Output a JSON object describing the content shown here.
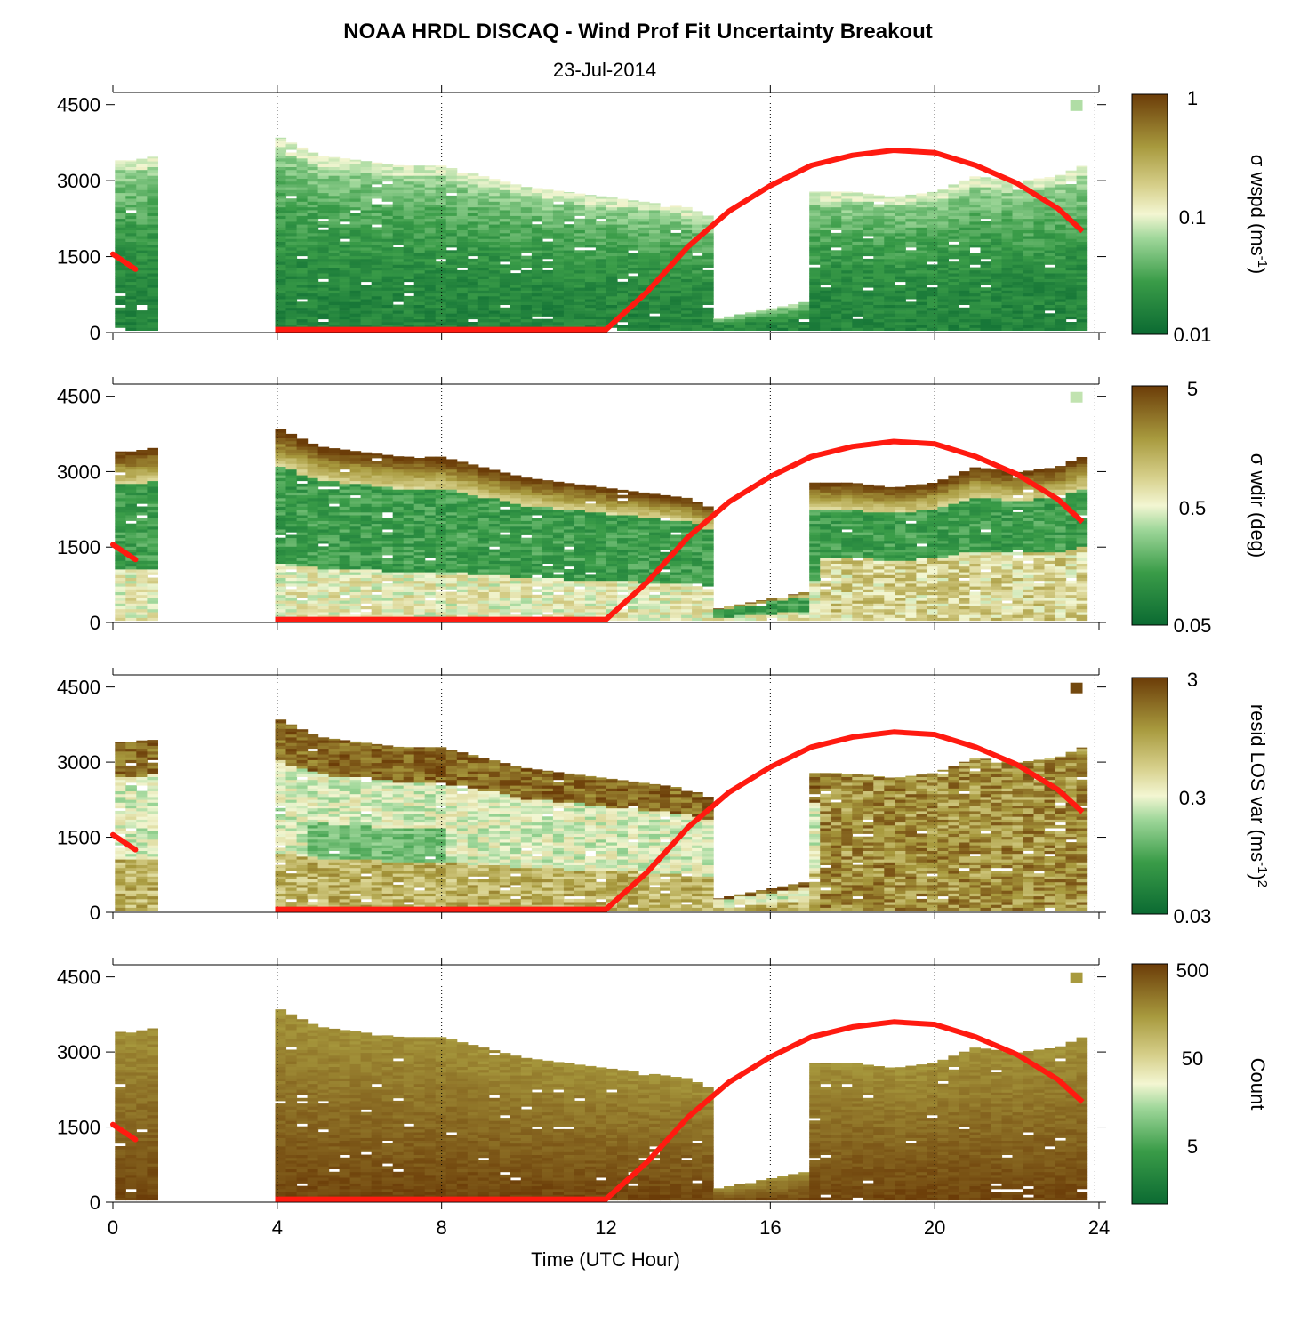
{
  "title": "NOAA HRDL DISCAQ - Wind Prof Fit Uncertainty Breakout",
  "subtitle": "23-Jul-2014",
  "xlabel": "Time (UTC Hour)",
  "colors": {
    "dark_green": "#0b6a32",
    "pale": "#f3f6d2",
    "tan": "#a89a3e",
    "dark_brown": "#6b3c08",
    "overlay_line": "#ff1a10",
    "gridline": "#000000"
  },
  "chart_data": [
    {
      "type": "heatmap",
      "panel": "sigma-wspd",
      "y_ticks": [
        0,
        1500,
        3000,
        4500
      ],
      "x_ticks": [
        0,
        4,
        8,
        12,
        16,
        20,
        24
      ],
      "xlim": [
        0,
        24
      ],
      "ylim": [
        0,
        4600
      ],
      "colorbar": {
        "label": "σ wspd (ms",
        "label_sup": "-1",
        "label_end": ")",
        "scale": "log",
        "tick_labels": [
          "1",
          "0.1",
          "0.01"
        ],
        "range": [
          0.01,
          1
        ]
      },
      "profile_tops": [
        [
          0,
          3300
        ],
        [
          0.5,
          3300
        ],
        [
          3.9,
          3800
        ],
        [
          5,
          3400
        ],
        [
          6,
          3300
        ],
        [
          7,
          3200
        ],
        [
          8,
          3200
        ],
        [
          9,
          3000
        ],
        [
          10,
          2800
        ],
        [
          11,
          2700
        ],
        [
          12,
          2600
        ],
        [
          13,
          2500
        ],
        [
          14,
          2400
        ],
        [
          14.6,
          2200
        ],
        [
          15,
          300
        ],
        [
          16,
          500
        ],
        [
          17,
          2700
        ],
        [
          18,
          2700
        ],
        [
          19,
          2600
        ],
        [
          20,
          2700
        ],
        [
          21,
          3000
        ],
        [
          22,
          2900
        ],
        [
          23,
          3000
        ],
        [
          23.6,
          3200
        ]
      ],
      "gaps": [
        [
          1.0,
          3.8
        ]
      ],
      "grid": "dotted vertical lines at major x ticks"
    },
    {
      "type": "heatmap",
      "panel": "sigma-wdir",
      "y_ticks": [
        0,
        1500,
        3000,
        4500
      ],
      "x_ticks": [
        0,
        4,
        8,
        12,
        16,
        20,
        24
      ],
      "xlim": [
        0,
        24
      ],
      "ylim": [
        0,
        4600
      ],
      "colorbar": {
        "label": "σ wdir (deg)",
        "scale": "log",
        "tick_labels": [
          "5",
          "0.5",
          "0.05"
        ],
        "range": [
          0.05,
          5
        ]
      },
      "grid": "dotted vertical lines at major x ticks"
    },
    {
      "type": "heatmap",
      "panel": "resid-los-var",
      "y_ticks": [
        0,
        1500,
        3000,
        4500
      ],
      "x_ticks": [
        0,
        4,
        8,
        12,
        16,
        20,
        24
      ],
      "xlim": [
        0,
        24
      ],
      "ylim": [
        0,
        4600
      ],
      "colorbar": {
        "label": "resid LOS var (ms",
        "label_sup": "-1",
        "label_end": ")",
        "label_sup2": "2",
        "scale": "log",
        "tick_labels": [
          "3",
          "0.3",
          "0.03"
        ],
        "range": [
          0.03,
          3
        ]
      },
      "grid": "dotted vertical lines at major x ticks"
    },
    {
      "type": "heatmap",
      "panel": "count",
      "y_ticks": [
        0,
        1500,
        3000,
        4500
      ],
      "x_ticks": [
        0,
        4,
        8,
        12,
        16,
        20,
        24
      ],
      "xlim": [
        0,
        24
      ],
      "ylim": [
        0,
        4600
      ],
      "colorbar": {
        "label": "Count",
        "scale": "log",
        "tick_labels": [
          "500",
          "50",
          "5"
        ],
        "range": [
          1,
          500
        ]
      },
      "grid": "dotted vertical lines at major x ticks"
    }
  ],
  "overlay_line": {
    "description_visible": "red curve repeated in each panel",
    "x": [
      0,
      0.55,
      3.95,
      12.0,
      13,
      14,
      15,
      16,
      17,
      18,
      19,
      20,
      21,
      22,
      23,
      23.6
    ],
    "y": [
      1550,
      1250,
      60,
      60,
      800,
      1700,
      2400,
      2900,
      3300,
      3500,
      3600,
      3550,
      3300,
      2950,
      2450,
      2000
    ]
  }
}
